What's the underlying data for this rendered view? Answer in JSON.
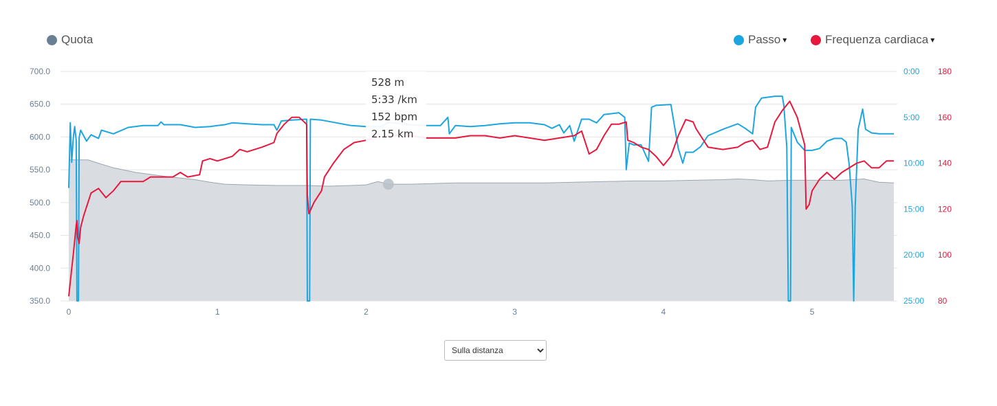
{
  "legend": {
    "left": {
      "label": "Quota",
      "color": "#6b7f93"
    },
    "pace": {
      "label": "Passo",
      "color": "#1ba6e0"
    },
    "hr": {
      "label": "Frequenza cardiaca",
      "color": "#e8173d"
    },
    "caret": "▾"
  },
  "tooltip": {
    "elevation": "528 m",
    "pace": "5:33 /km",
    "hr": "152 bpm",
    "distance": "2.15 km"
  },
  "mode_select": {
    "selected": "Sulla distanza",
    "options": [
      "Sulla distanza"
    ]
  },
  "chart_data": {
    "type": "area",
    "x_label": "",
    "x_ticks": [
      "0",
      "1",
      "2",
      "3",
      "4",
      "5"
    ],
    "xlim": [
      0,
      5.55
    ],
    "left_axis": {
      "ticks": [
        "700.0",
        "650.0",
        "600.0",
        "550.0",
        "500.0",
        "450.0",
        "400.0",
        "350.0"
      ],
      "range": [
        350,
        700
      ]
    },
    "pace_axis": {
      "ticks": [
        "0:00",
        "5:00",
        "10:00",
        "15:00",
        "20:00",
        "25:00"
      ],
      "range_min_per_km": [
        0,
        25
      ]
    },
    "hr_axis": {
      "ticks": [
        "180",
        "160",
        "140",
        "120",
        "100",
        "80"
      ],
      "range": [
        80,
        180
      ]
    },
    "grid": true,
    "hover": {
      "x": 2.15,
      "elevation": 528
    },
    "series": [
      {
        "name": "Quota",
        "type": "area",
        "color": "#6b7f93",
        "points": [
          [
            0,
            565
          ],
          [
            0.13,
            565
          ],
          [
            0.2,
            560
          ],
          [
            0.3,
            553
          ],
          [
            0.45,
            546
          ],
          [
            0.65,
            540
          ],
          [
            0.85,
            535
          ],
          [
            0.95,
            531
          ],
          [
            1.05,
            528
          ],
          [
            1.2,
            527
          ],
          [
            1.4,
            526
          ],
          [
            1.6,
            526
          ],
          [
            1.75,
            525
          ],
          [
            1.9,
            526
          ],
          [
            2.0,
            527
          ],
          [
            2.08,
            532
          ],
          [
            2.15,
            528
          ],
          [
            2.3,
            528
          ],
          [
            2.45,
            529
          ],
          [
            2.6,
            530
          ],
          [
            2.75,
            530
          ],
          [
            3.0,
            530
          ],
          [
            3.2,
            530
          ],
          [
            3.4,
            531
          ],
          [
            3.6,
            532
          ],
          [
            3.8,
            533
          ],
          [
            4.0,
            533
          ],
          [
            4.2,
            534
          ],
          [
            4.4,
            535
          ],
          [
            4.5,
            536
          ],
          [
            4.6,
            535
          ],
          [
            4.7,
            533
          ],
          [
            4.85,
            534
          ],
          [
            5.0,
            534
          ],
          [
            5.2,
            534
          ],
          [
            5.35,
            536
          ],
          [
            5.45,
            531
          ],
          [
            5.55,
            530
          ]
        ]
      },
      {
        "name": "Passo",
        "type": "line",
        "color": "#1ba6e0",
        "points": [
          [
            0,
            12.7
          ],
          [
            0.01,
            5.6
          ],
          [
            0.02,
            9.9
          ],
          [
            0.03,
            7.3
          ],
          [
            0.04,
            6.0
          ],
          [
            0.05,
            7.5
          ],
          [
            0.055,
            25
          ],
          [
            0.065,
            25
          ],
          [
            0.07,
            7.2
          ],
          [
            0.08,
            6.4
          ],
          [
            0.1,
            7.0
          ],
          [
            0.12,
            7.6
          ],
          [
            0.15,
            6.9
          ],
          [
            0.2,
            7.3
          ],
          [
            0.22,
            6.4
          ],
          [
            0.3,
            6.8
          ],
          [
            0.4,
            6.1
          ],
          [
            0.5,
            5.9
          ],
          [
            0.6,
            5.9
          ],
          [
            0.62,
            5.5
          ],
          [
            0.64,
            5.8
          ],
          [
            0.75,
            5.8
          ],
          [
            0.85,
            6.1
          ],
          [
            0.95,
            6.0
          ],
          [
            1.0,
            5.9
          ],
          [
            1.05,
            5.8
          ],
          [
            1.1,
            5.6
          ],
          [
            1.2,
            5.7
          ],
          [
            1.3,
            5.8
          ],
          [
            1.38,
            5.8
          ],
          [
            1.4,
            6.4
          ],
          [
            1.43,
            5.4
          ],
          [
            1.5,
            5.3
          ],
          [
            1.6,
            5.2
          ],
          [
            1.605,
            25
          ],
          [
            1.62,
            25
          ],
          [
            1.625,
            5.2
          ],
          [
            1.7,
            5.3
          ],
          [
            1.8,
            5.6
          ],
          [
            1.9,
            5.9
          ],
          [
            2.0,
            6.0
          ],
          [
            2.1,
            6.0
          ],
          [
            2.15,
            5.55
          ],
          [
            2.3,
            5.8
          ],
          [
            2.4,
            5.9
          ],
          [
            2.5,
            5.9
          ],
          [
            2.55,
            5.0
          ],
          [
            2.56,
            6.8
          ],
          [
            2.6,
            5.9
          ],
          [
            2.7,
            6.0
          ],
          [
            2.8,
            5.9
          ],
          [
            2.9,
            5.7
          ],
          [
            3.0,
            5.6
          ],
          [
            3.1,
            5.6
          ],
          [
            3.2,
            5.8
          ],
          [
            3.25,
            6.2
          ],
          [
            3.3,
            5.8
          ],
          [
            3.33,
            6.7
          ],
          [
            3.37,
            5.9
          ],
          [
            3.4,
            7.6
          ],
          [
            3.45,
            5.2
          ],
          [
            3.5,
            5.2
          ],
          [
            3.55,
            5.6
          ],
          [
            3.6,
            4.7
          ],
          [
            3.7,
            4.5
          ],
          [
            3.74,
            5.0
          ],
          [
            3.75,
            10.7
          ],
          [
            3.77,
            7.8
          ],
          [
            3.8,
            8.0
          ],
          [
            3.85,
            8.0
          ],
          [
            3.9,
            9.8
          ],
          [
            3.92,
            3.9
          ],
          [
            3.95,
            3.7
          ],
          [
            4.05,
            3.6
          ],
          [
            4.08,
            6.5
          ],
          [
            4.1,
            8.4
          ],
          [
            4.13,
            10.0
          ],
          [
            4.15,
            8.8
          ],
          [
            4.2,
            8.8
          ],
          [
            4.25,
            8.2
          ],
          [
            4.3,
            7.0
          ],
          [
            4.4,
            6.3
          ],
          [
            4.5,
            5.7
          ],
          [
            4.55,
            6.2
          ],
          [
            4.6,
            6.8
          ],
          [
            4.62,
            3.9
          ],
          [
            4.66,
            2.9
          ],
          [
            4.75,
            2.7
          ],
          [
            4.8,
            2.7
          ],
          [
            4.81,
            3.7
          ],
          [
            4.83,
            8.3
          ],
          [
            4.84,
            25
          ],
          [
            4.855,
            25
          ],
          [
            4.86,
            6.1
          ],
          [
            4.9,
            7.7
          ],
          [
            4.95,
            8.6
          ],
          [
            5.0,
            8.6
          ],
          [
            5.05,
            8.4
          ],
          [
            5.1,
            7.6
          ],
          [
            5.15,
            7.3
          ],
          [
            5.2,
            7.3
          ],
          [
            5.23,
            7.7
          ],
          [
            5.25,
            10.2
          ],
          [
            5.27,
            14.7
          ],
          [
            5.28,
            25
          ],
          [
            5.29,
            14.7
          ],
          [
            5.31,
            6.3
          ],
          [
            5.34,
            4.1
          ],
          [
            5.36,
            6.3
          ],
          [
            5.4,
            6.7
          ],
          [
            5.45,
            6.8
          ],
          [
            5.55,
            6.8
          ]
        ]
      },
      {
        "name": "Frequenza cardiaca",
        "type": "line",
        "color": "#e8173d",
        "points": [
          [
            0,
            82
          ],
          [
            0.02,
            94
          ],
          [
            0.03,
            100
          ],
          [
            0.05,
            113
          ],
          [
            0.055,
            115
          ],
          [
            0.06,
            108
          ],
          [
            0.07,
            105
          ],
          [
            0.08,
            112
          ],
          [
            0.1,
            117
          ],
          [
            0.12,
            121
          ],
          [
            0.15,
            127
          ],
          [
            0.2,
            129
          ],
          [
            0.25,
            125
          ],
          [
            0.3,
            128
          ],
          [
            0.35,
            132
          ],
          [
            0.4,
            132
          ],
          [
            0.5,
            132
          ],
          [
            0.55,
            134
          ],
          [
            0.6,
            134
          ],
          [
            0.7,
            134
          ],
          [
            0.75,
            136
          ],
          [
            0.8,
            134
          ],
          [
            0.88,
            135
          ],
          [
            0.9,
            141
          ],
          [
            0.95,
            142
          ],
          [
            1.0,
            141
          ],
          [
            1.1,
            143
          ],
          [
            1.15,
            146
          ],
          [
            1.2,
            145
          ],
          [
            1.3,
            147
          ],
          [
            1.38,
            149
          ],
          [
            1.4,
            153
          ],
          [
            1.45,
            157
          ],
          [
            1.5,
            160
          ],
          [
            1.55,
            160
          ],
          [
            1.6,
            157
          ],
          [
            1.605,
            126
          ],
          [
            1.615,
            118
          ],
          [
            1.65,
            123
          ],
          [
            1.7,
            128
          ],
          [
            1.72,
            134
          ],
          [
            1.78,
            140
          ],
          [
            1.85,
            146
          ],
          [
            1.92,
            149
          ],
          [
            2.0,
            150
          ],
          [
            2.05,
            151
          ],
          [
            2.15,
            152
          ],
          [
            2.3,
            152
          ],
          [
            2.4,
            151
          ],
          [
            2.5,
            151
          ],
          [
            2.6,
            151
          ],
          [
            2.7,
            152
          ],
          [
            2.8,
            152
          ],
          [
            2.9,
            151
          ],
          [
            3.0,
            152
          ],
          [
            3.1,
            151
          ],
          [
            3.2,
            150
          ],
          [
            3.3,
            151
          ],
          [
            3.4,
            152
          ],
          [
            3.45,
            154
          ],
          [
            3.5,
            144
          ],
          [
            3.55,
            146
          ],
          [
            3.6,
            152
          ],
          [
            3.65,
            157
          ],
          [
            3.7,
            157
          ],
          [
            3.75,
            158
          ],
          [
            3.76,
            150
          ],
          [
            3.8,
            149
          ],
          [
            3.85,
            147
          ],
          [
            3.9,
            146
          ],
          [
            3.95,
            143
          ],
          [
            4.0,
            139
          ],
          [
            4.05,
            143
          ],
          [
            4.1,
            152
          ],
          [
            4.15,
            159
          ],
          [
            4.2,
            158
          ],
          [
            4.22,
            155
          ],
          [
            4.3,
            147
          ],
          [
            4.4,
            146
          ],
          [
            4.5,
            147
          ],
          [
            4.55,
            149
          ],
          [
            4.6,
            150
          ],
          [
            4.65,
            146
          ],
          [
            4.7,
            147
          ],
          [
            4.75,
            158
          ],
          [
            4.8,
            163
          ],
          [
            4.85,
            167
          ],
          [
            4.9,
            160
          ],
          [
            4.95,
            148
          ],
          [
            4.96,
            120
          ],
          [
            4.98,
            122
          ],
          [
            5.0,
            128
          ],
          [
            5.05,
            133
          ],
          [
            5.1,
            136
          ],
          [
            5.15,
            133
          ],
          [
            5.2,
            136
          ],
          [
            5.3,
            140
          ],
          [
            5.35,
            141
          ],
          [
            5.4,
            138
          ],
          [
            5.45,
            138
          ],
          [
            5.5,
            141
          ],
          [
            5.55,
            141
          ]
        ]
      }
    ]
  }
}
